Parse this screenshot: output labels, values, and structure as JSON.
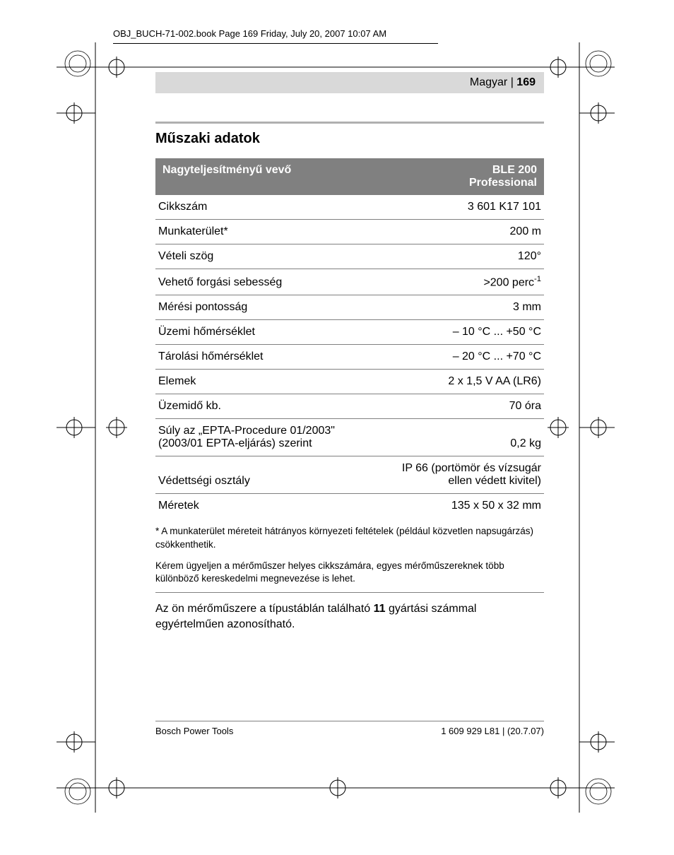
{
  "book_header": "OBJ_BUCH-71-002.book  Page 169  Friday, July 20, 2007  10:07 AM",
  "lang_label": "Magyar",
  "lang_sep": " | ",
  "page_number": "169",
  "section_title": "Műszaki adatok",
  "table": {
    "header_left": "Nagyteljesítményű vevő",
    "header_right_line1": "BLE 200",
    "header_right_line2": "Professional",
    "rows": [
      {
        "label": "Cikkszám",
        "value": "3 601 K17 101"
      },
      {
        "label": "Munkaterület*",
        "value": "200 m"
      },
      {
        "label": "Vételi szög",
        "value": "120°"
      },
      {
        "label": "Vehető forgási sebesség",
        "value": ">200 perc",
        "sup": "-1"
      },
      {
        "label": "Mérési pontosság",
        "value": "3 mm"
      },
      {
        "label": "Üzemi hőmérséklet",
        "value": "– 10 °C ... +50 °C"
      },
      {
        "label": "Tárolási hőmérséklet",
        "value": "– 20 °C ... +70 °C"
      },
      {
        "label": "Elemek",
        "value": "2 x 1,5 V AA (LR6)"
      },
      {
        "label": "Üzemidő kb.",
        "value": "70 óra"
      },
      {
        "label": "Súly az „EPTA-Procedure 01/2003\" (2003/01 EPTA-eljárás) szerint",
        "value": "0,2 kg"
      },
      {
        "label": "Védettségi osztály",
        "value": "IP 66 (portömör és vízsugár ellen védett kivitel)"
      },
      {
        "label": "Méretek",
        "value": "135 x 50 x 32 mm",
        "noborder": true
      }
    ]
  },
  "footnote1": "* A munkaterület méreteit hátrányos környezeti feltételek (például közvetlen napsugárzás) csökkenthetik.",
  "footnote2": "Kérem ügyeljen a mérőműszer helyes cikkszámára, egyes mérőműszereknek több különböző kereskedelmi megnevezése is lehet.",
  "body_text_pre": "Az ön mérőműszere a típustáblán található ",
  "body_text_bold": "11",
  "body_text_post": " gyártási számmal egyértelműen azonosítható.",
  "footer_left": "Bosch Power Tools",
  "footer_right": "1 609 929 L81 | (20.7.07)",
  "colors": {
    "header_bg": "#808080",
    "header_fg": "#ffffff",
    "rule": "#b0b0b0",
    "row_border": "#808080",
    "lang_bg": "#d9d9d9"
  }
}
